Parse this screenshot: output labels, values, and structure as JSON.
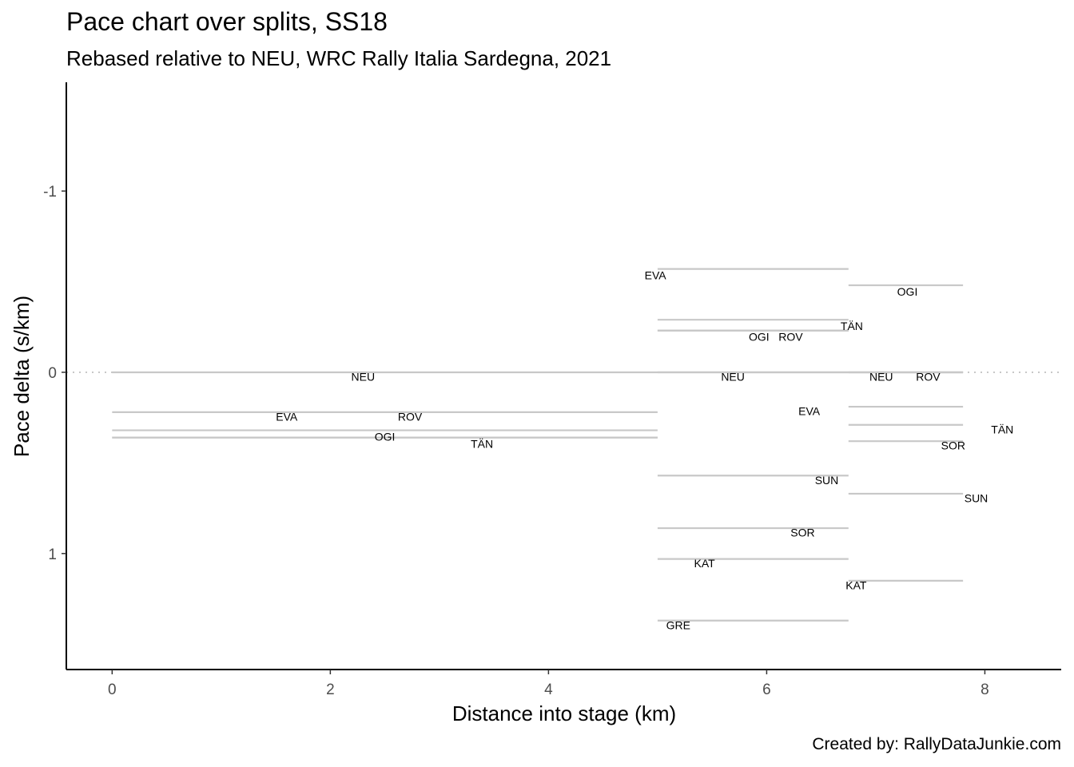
{
  "chart_data": {
    "type": "line",
    "title": "Pace chart over splits, SS18",
    "subtitle": "Rebased relative to NEU, WRC Rally Italia Sardegna, 2021",
    "caption": "Created by: RallyDataJunkie.com",
    "xlabel": "Distance into stage (km)",
    "ylabel": "Pace delta (s/km)",
    "xlim": [
      -0.42,
      8.7
    ],
    "ylim": [
      1.64,
      -1.6
    ],
    "y_reversed": true,
    "x_ticks": [
      0,
      2,
      4,
      6,
      8
    ],
    "x_tick_labels": [
      "0",
      "2",
      "4",
      "6",
      "8"
    ],
    "y_ticks": [
      -1,
      0,
      1
    ],
    "y_tick_labels": [
      "-1",
      "0",
      "1"
    ],
    "reference_line": {
      "y": 0,
      "style": "dotted"
    },
    "grid": false,
    "segments": [
      {
        "label": "NEU",
        "x0": 0,
        "x1": 7.8,
        "y": 0,
        "lx": 2.3,
        "ly": 0.03
      },
      {
        "label": "EVA",
        "x0": 0,
        "x1": 5.0,
        "y": 0.22,
        "lx": 1.6,
        "ly": 0.25
      },
      {
        "label": "ROV",
        "x0": 0,
        "x1": 5.0,
        "y": 0.32,
        "lx": 2.73,
        "ly": 0.25
      },
      {
        "label": "OGI",
        "x0": 0,
        "x1": 5.0,
        "y": 0.36,
        "lx": 2.5,
        "ly": 0.36
      },
      {
        "label": "TÄN",
        "x0": 0,
        "x1": 5.0,
        "y": 0.36,
        "lx": 3.39,
        "ly": 0.4
      },
      {
        "label": "EVA",
        "x0": 5.0,
        "x1": 6.75,
        "y": -0.57,
        "lx": 4.98,
        "ly": -0.53
      },
      {
        "label": "TÄN",
        "x0": 5.0,
        "x1": 6.75,
        "y": -0.29,
        "lx": 6.78,
        "ly": -0.25
      },
      {
        "label": "OGI",
        "x0": 5.0,
        "x1": 6.75,
        "y": -0.23,
        "lx": 5.93,
        "ly": -0.19
      },
      {
        "label": "ROV",
        "x0": 5.0,
        "x1": 6.75,
        "y": -0.23,
        "lx": 6.22,
        "ly": -0.19
      },
      {
        "label": "NEU",
        "x0": 5.0,
        "x1": 6.75,
        "y": 0,
        "lx": 5.69,
        "ly": 0.03
      },
      {
        "label": "SUN",
        "x0": 5.0,
        "x1": 6.75,
        "y": 0.57,
        "lx": 6.55,
        "ly": 0.6
      },
      {
        "label": "SOR",
        "x0": 5.0,
        "x1": 6.75,
        "y": 0.86,
        "lx": 6.33,
        "ly": 0.89
      },
      {
        "label": "KAT",
        "x0": 5.0,
        "x1": 6.75,
        "y": 1.03,
        "lx": 5.43,
        "ly": 1.06
      },
      {
        "label": "GRE",
        "x0": 5.0,
        "x1": 6.75,
        "y": 1.37,
        "lx": 5.19,
        "ly": 1.4
      },
      {
        "label": "OGI",
        "x0": 6.75,
        "x1": 7.8,
        "y": -0.48,
        "lx": 7.29,
        "ly": -0.44
      },
      {
        "label": "NEU",
        "x0": 6.75,
        "x1": 7.8,
        "y": 0,
        "lx": 7.05,
        "ly": 0.03
      },
      {
        "label": "ROV",
        "x0": 6.75,
        "x1": 7.8,
        "y": 0,
        "lx": 7.48,
        "ly": 0.03
      },
      {
        "label": "EVA",
        "x0": 6.75,
        "x1": 7.8,
        "y": 0.19,
        "lx": 6.39,
        "ly": 0.22
      },
      {
        "label": "TÄN",
        "x0": 6.75,
        "x1": 7.8,
        "y": 0.29,
        "lx": 8.16,
        "ly": 0.32
      },
      {
        "label": "SOR",
        "x0": 6.75,
        "x1": 7.8,
        "y": 0.38,
        "lx": 7.71,
        "ly": 0.41
      },
      {
        "label": "SUN",
        "x0": 6.75,
        "x1": 7.8,
        "y": 0.67,
        "lx": 7.92,
        "ly": 0.7
      },
      {
        "label": "KAT",
        "x0": 6.75,
        "x1": 7.8,
        "y": 1.15,
        "lx": 6.82,
        "ly": 1.18
      }
    ],
    "colors": {
      "segment": "#c8c8c8",
      "reference": "#c8c8c8",
      "axis": "#000000",
      "tick_text": "#4d4d4d"
    }
  }
}
